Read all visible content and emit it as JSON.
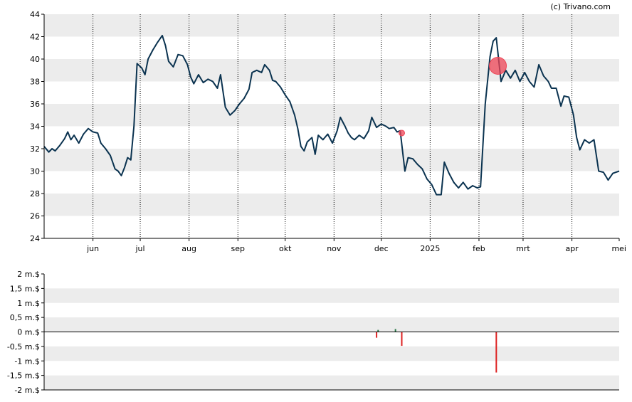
{
  "copyright": "(c) Trivano.com",
  "colors": {
    "line": "#0b3350",
    "band": "#ececec",
    "marker": "#ee4455",
    "sell": "#dd2222",
    "buy": "#2c7a4a",
    "axis": "#000000",
    "vgrid": "#000000"
  },
  "chart_data": [
    {
      "type": "line",
      "ylim": [
        24,
        44
      ],
      "yticks": [
        "24",
        "26",
        "28",
        "30",
        "32",
        "34",
        "36",
        "38",
        "40",
        "42",
        "44"
      ],
      "xlim": [
        "2024-05-01",
        "2025-05-01"
      ],
      "xticks": [
        {
          "date": "2024-06-01",
          "label": "jun"
        },
        {
          "date": "2024-07-01",
          "label": "jul"
        },
        {
          "date": "2024-08-01",
          "label": "aug"
        },
        {
          "date": "2024-09-01",
          "label": "sep"
        },
        {
          "date": "2024-10-01",
          "label": "okt"
        },
        {
          "date": "2024-11-01",
          "label": "nov"
        },
        {
          "date": "2024-12-01",
          "label": "dec"
        },
        {
          "date": "2025-01-01",
          "label": "2025"
        },
        {
          "date": "2025-02-01",
          "label": "feb"
        },
        {
          "date": "2025-03-01",
          "label": "mrt"
        },
        {
          "date": "2025-04-01",
          "label": "apr"
        },
        {
          "date": "2025-05-01",
          "label": "mei"
        }
      ],
      "grid": true,
      "series": [
        {
          "points": [
            [
              "2024-05-01",
              32.2
            ],
            [
              "2024-05-04",
              31.7
            ],
            [
              "2024-05-06",
              32.0
            ],
            [
              "2024-05-08",
              31.8
            ],
            [
              "2024-05-11",
              32.3
            ],
            [
              "2024-05-14",
              32.9
            ],
            [
              "2024-05-16",
              33.5
            ],
            [
              "2024-05-18",
              32.8
            ],
            [
              "2024-05-20",
              33.2
            ],
            [
              "2024-05-23",
              32.5
            ],
            [
              "2024-05-26",
              33.3
            ],
            [
              "2024-05-29",
              33.8
            ],
            [
              "2024-06-01",
              33.5
            ],
            [
              "2024-06-04",
              33.4
            ],
            [
              "2024-06-06",
              32.5
            ],
            [
              "2024-06-09",
              32.0
            ],
            [
              "2024-06-12",
              31.4
            ],
            [
              "2024-06-15",
              30.2
            ],
            [
              "2024-06-17",
              30.0
            ],
            [
              "2024-06-19",
              29.6
            ],
            [
              "2024-06-21",
              30.3
            ],
            [
              "2024-06-23",
              31.2
            ],
            [
              "2024-06-25",
              31.0
            ],
            [
              "2024-06-27",
              34.0
            ],
            [
              "2024-06-29",
              39.6
            ],
            [
              "2024-07-02",
              39.2
            ],
            [
              "2024-07-04",
              38.6
            ],
            [
              "2024-07-06",
              40.0
            ],
            [
              "2024-07-09",
              40.8
            ],
            [
              "2024-07-12",
              41.5
            ],
            [
              "2024-07-15",
              42.1
            ],
            [
              "2024-07-17",
              41.2
            ],
            [
              "2024-07-19",
              39.8
            ],
            [
              "2024-07-22",
              39.3
            ],
            [
              "2024-07-25",
              40.4
            ],
            [
              "2024-07-28",
              40.3
            ],
            [
              "2024-07-31",
              39.5
            ],
            [
              "2024-08-02",
              38.4
            ],
            [
              "2024-08-04",
              37.8
            ],
            [
              "2024-08-07",
              38.6
            ],
            [
              "2024-08-10",
              37.9
            ],
            [
              "2024-08-13",
              38.2
            ],
            [
              "2024-08-16",
              38.0
            ],
            [
              "2024-08-19",
              37.4
            ],
            [
              "2024-08-21",
              38.6
            ],
            [
              "2024-08-24",
              35.7
            ],
            [
              "2024-08-27",
              35.0
            ],
            [
              "2024-08-30",
              35.4
            ],
            [
              "2024-09-02",
              36.0
            ],
            [
              "2024-09-05",
              36.5
            ],
            [
              "2024-09-08",
              37.3
            ],
            [
              "2024-09-10",
              38.8
            ],
            [
              "2024-09-13",
              39.0
            ],
            [
              "2024-09-16",
              38.8
            ],
            [
              "2024-09-18",
              39.5
            ],
            [
              "2024-09-21",
              39.0
            ],
            [
              "2024-09-23",
              38.1
            ],
            [
              "2024-09-25",
              38.0
            ],
            [
              "2024-09-28",
              37.5
            ],
            [
              "2024-10-01",
              36.8
            ],
            [
              "2024-10-04",
              36.2
            ],
            [
              "2024-10-07",
              35.0
            ],
            [
              "2024-10-09",
              33.8
            ],
            [
              "2024-10-11",
              32.2
            ],
            [
              "2024-10-13",
              31.8
            ],
            [
              "2024-10-15",
              32.6
            ],
            [
              "2024-10-18",
              33.0
            ],
            [
              "2024-10-20",
              31.5
            ],
            [
              "2024-10-22",
              33.2
            ],
            [
              "2024-10-25",
              32.8
            ],
            [
              "2024-10-28",
              33.3
            ],
            [
              "2024-10-31",
              32.5
            ],
            [
              "2024-11-03",
              33.6
            ],
            [
              "2024-11-05",
              34.8
            ],
            [
              "2024-11-08",
              34.0
            ],
            [
              "2024-11-10",
              33.4
            ],
            [
              "2024-11-12",
              33.0
            ],
            [
              "2024-11-14",
              32.8
            ],
            [
              "2024-11-17",
              33.2
            ],
            [
              "2024-11-20",
              32.9
            ],
            [
              "2024-11-23",
              33.6
            ],
            [
              "2024-11-25",
              34.8
            ],
            [
              "2024-11-28",
              33.9
            ],
            [
              "2024-12-01",
              34.2
            ],
            [
              "2024-12-04",
              34.0
            ],
            [
              "2024-12-06",
              33.8
            ],
            [
              "2024-12-09",
              33.9
            ],
            [
              "2024-12-11",
              33.5
            ],
            [
              "2024-12-13",
              33.6
            ],
            [
              "2024-12-16",
              30.0
            ],
            [
              "2024-12-18",
              31.2
            ],
            [
              "2024-12-21",
              31.1
            ],
            [
              "2024-12-24",
              30.6
            ],
            [
              "2024-12-27",
              30.2
            ],
            [
              "2024-12-30",
              29.3
            ],
            [
              "2025-01-02",
              28.8
            ],
            [
              "2025-01-05",
              27.9
            ],
            [
              "2025-01-08",
              27.9
            ],
            [
              "2025-01-10",
              30.8
            ],
            [
              "2025-01-13",
              29.8
            ],
            [
              "2025-01-16",
              29.0
            ],
            [
              "2025-01-19",
              28.5
            ],
            [
              "2025-01-22",
              29.0
            ],
            [
              "2025-01-25",
              28.4
            ],
            [
              "2025-01-28",
              28.7
            ],
            [
              "2025-01-31",
              28.5
            ],
            [
              "2025-02-02",
              28.6
            ],
            [
              "2025-02-05",
              36.0
            ],
            [
              "2025-02-08",
              40.2
            ],
            [
              "2025-02-10",
              41.6
            ],
            [
              "2025-02-12",
              41.9
            ],
            [
              "2025-02-15",
              38.0
            ],
            [
              "2025-02-18",
              39.0
            ],
            [
              "2025-02-21",
              38.3
            ],
            [
              "2025-02-24",
              39.0
            ],
            [
              "2025-02-27",
              38.0
            ],
            [
              "2025-03-02",
              38.8
            ],
            [
              "2025-03-05",
              38.0
            ],
            [
              "2025-03-08",
              37.5
            ],
            [
              "2025-03-11",
              39.5
            ],
            [
              "2025-03-14",
              38.5
            ],
            [
              "2025-03-17",
              38.0
            ],
            [
              "2025-03-19",
              37.4
            ],
            [
              "2025-03-22",
              37.4
            ],
            [
              "2025-03-25",
              35.8
            ],
            [
              "2025-03-27",
              36.7
            ],
            [
              "2025-03-30",
              36.6
            ],
            [
              "2025-04-02",
              35.0
            ],
            [
              "2025-04-04",
              33.0
            ],
            [
              "2025-04-06",
              31.9
            ],
            [
              "2025-04-09",
              32.8
            ],
            [
              "2025-04-12",
              32.5
            ],
            [
              "2025-04-15",
              32.8
            ],
            [
              "2025-04-18",
              30.0
            ],
            [
              "2025-04-21",
              29.9
            ],
            [
              "2025-04-24",
              29.2
            ],
            [
              "2025-04-27",
              29.8
            ],
            [
              "2025-05-01",
              30.0
            ]
          ]
        }
      ],
      "markers": [
        {
          "date": "2024-12-14",
          "value": 33.4,
          "size": "small"
        },
        {
          "date": "2025-02-13",
          "value": 39.4,
          "size": "large"
        }
      ]
    },
    {
      "type": "bar",
      "unit": "m.$",
      "ylim": [
        -2,
        2
      ],
      "yticks": [
        "-2 m.$",
        "-1,5 m.$",
        "-1 m.$",
        "-0,5 m.$",
        "0 m.$",
        "0,5 m.$",
        "1 m.$",
        "1,5 m.$",
        "2 m.$"
      ],
      "xlim": [
        "2024-05-01",
        "2025-05-01"
      ],
      "grid": true,
      "bars": [
        {
          "date": "2024-11-28",
          "value": -0.2
        },
        {
          "date": "2024-11-29",
          "value": 0.07
        },
        {
          "date": "2024-12-10",
          "value": 0.1
        },
        {
          "date": "2024-12-14",
          "value": -0.48
        },
        {
          "date": "2025-02-12",
          "value": -1.4
        }
      ]
    }
  ]
}
